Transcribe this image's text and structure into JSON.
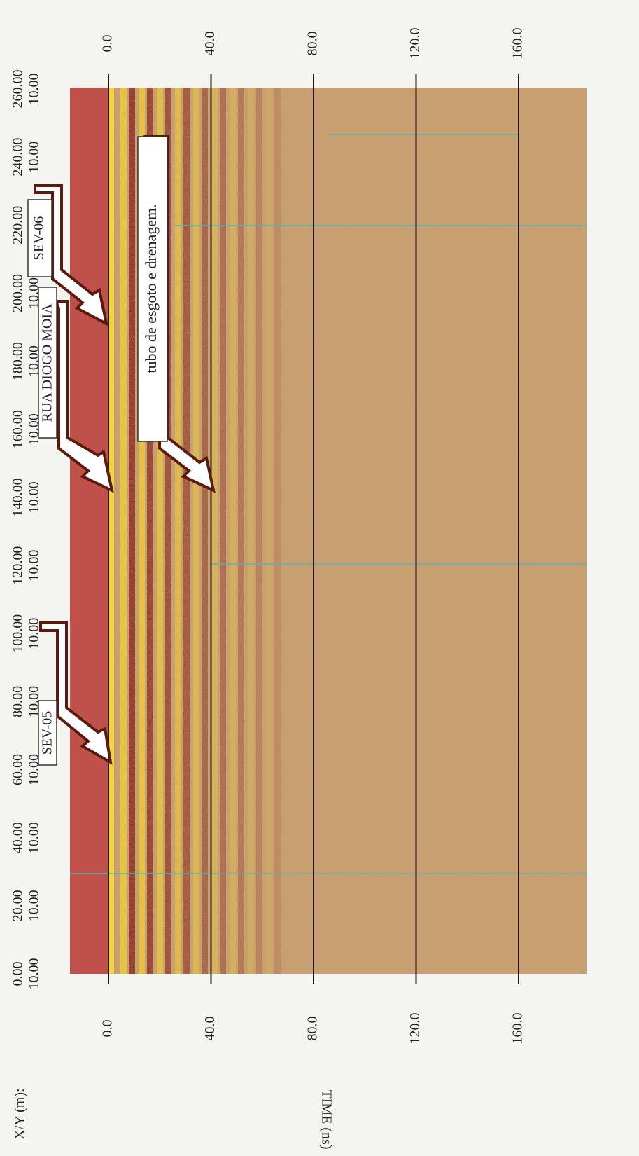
{
  "x_axis": {
    "label": "X/Y (m):",
    "ticks": [
      {
        "x": "0.00",
        "y": "10.00"
      },
      {
        "x": "20.00",
        "y": "10.00"
      },
      {
        "x": "40.00",
        "y": "10.00"
      },
      {
        "x": "60.00",
        "y": "10.00"
      },
      {
        "x": "80.00",
        "y": "10.00"
      },
      {
        "x": "100.00",
        "y": "10.00"
      },
      {
        "x": "120.00",
        "y": "10.00"
      },
      {
        "x": "140.00",
        "y": "10.00"
      },
      {
        "x": "160.00",
        "y": "10.00"
      },
      {
        "x": "180.00",
        "y": "10.00"
      },
      {
        "x": "200.00",
        "y": "10.00"
      },
      {
        "x": "220.00",
        "y": "10.00"
      },
      {
        "x": "240.00",
        "y": "10.00"
      },
      {
        "x": "260.00",
        "y": "10.00"
      }
    ]
  },
  "time_axis": {
    "label": "TIME (ns)",
    "ticks": [
      "0.0",
      "40.0",
      "80.0",
      "120.0",
      "160.0"
    ]
  },
  "annotations": [
    "SEV-05",
    "RUA DIOGO MOIA",
    "SEV-06",
    "tubo de esgoto e drenagem."
  ]
}
